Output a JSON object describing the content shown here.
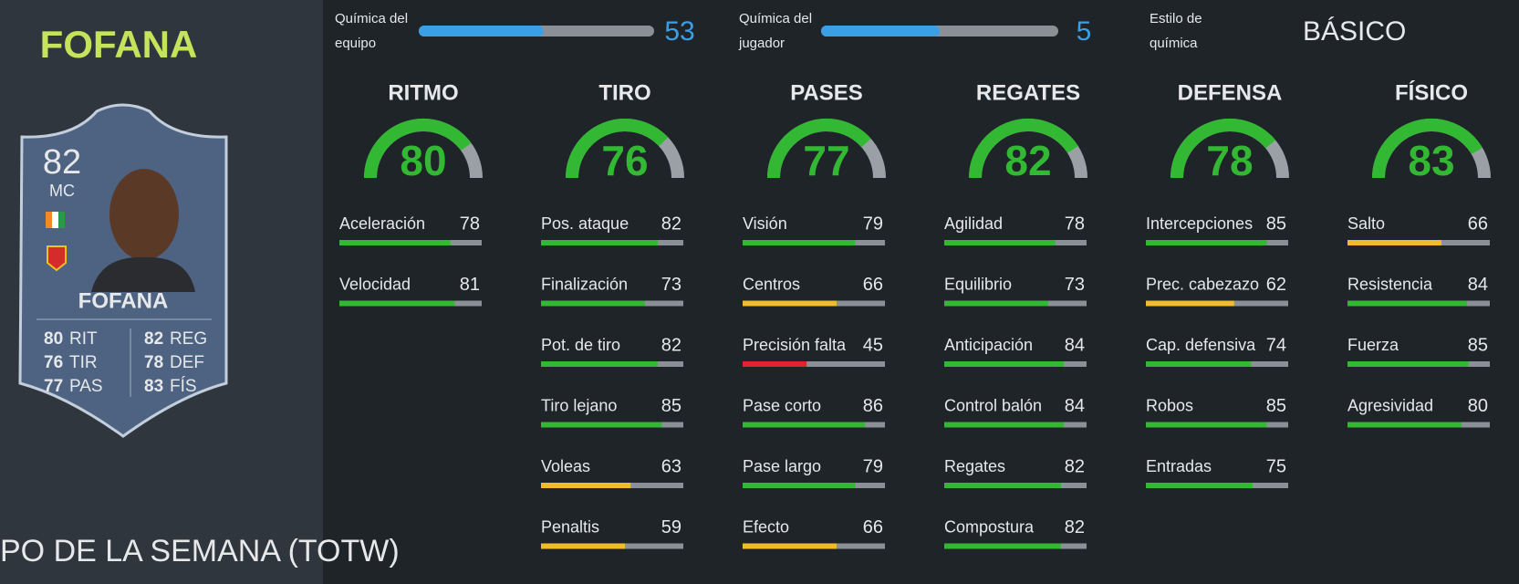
{
  "player": {
    "name": "FOFANA",
    "banner": "PO DE LA SEMANA (TOTW)"
  },
  "card": {
    "rating": 82,
    "position": "MC",
    "name": "FOFANA",
    "attribute_labels": [
      "RIT",
      "TIR",
      "PAS",
      "REG",
      "DEF",
      "FÍS"
    ]
  },
  "chemistry": {
    "team": {
      "label": [
        "Química del",
        "equipo"
      ],
      "value": 53,
      "range": [
        0,
        100
      ],
      "color": "#3b9fe6"
    },
    "player": {
      "label": [
        "Química del",
        "jugador"
      ],
      "value": 5,
      "range": [
        0,
        10
      ],
      "color": "#3b9fe6"
    },
    "style": {
      "label": [
        "Estilo de",
        "química"
      ],
      "value": "BÁSICO"
    }
  },
  "stats": {
    "range": [
      0,
      100
    ],
    "color_scale": [
      {
        "from": 0,
        "color": "#e0242e"
      },
      {
        "from": 50,
        "color": "#f0bb2c"
      },
      {
        "from": 70,
        "color": "#33b833"
      }
    ],
    "groups": [
      {
        "name": "RITMO",
        "value": 80,
        "attributes": [
          {
            "name": "Aceleración",
            "value": 78
          },
          {
            "name": "Velocidad",
            "value": 81
          }
        ]
      },
      {
        "name": "TIRO",
        "value": 76,
        "attributes": [
          {
            "name": "Pos. ataque",
            "value": 82
          },
          {
            "name": "Finalización",
            "value": 73
          },
          {
            "name": "Pot. de tiro",
            "value": 82
          },
          {
            "name": "Tiro lejano",
            "value": 85
          },
          {
            "name": "Voleas",
            "value": 63
          },
          {
            "name": "Penaltis",
            "value": 59
          }
        ]
      },
      {
        "name": "PASES",
        "value": 77,
        "attributes": [
          {
            "name": "Visión",
            "value": 79
          },
          {
            "name": "Centros",
            "value": 66
          },
          {
            "name": "Precisión falta",
            "value": 45
          },
          {
            "name": "Pase corto",
            "value": 86
          },
          {
            "name": "Pase largo",
            "value": 79
          },
          {
            "name": "Efecto",
            "value": 66
          }
        ]
      },
      {
        "name": "REGATES",
        "value": 82,
        "attributes": [
          {
            "name": "Agilidad",
            "value": 78
          },
          {
            "name": "Equilibrio",
            "value": 73
          },
          {
            "name": "Anticipación",
            "value": 84
          },
          {
            "name": "Control balón",
            "value": 84
          },
          {
            "name": "Regates",
            "value": 82
          },
          {
            "name": "Compostura",
            "value": 82
          }
        ]
      },
      {
        "name": "DEFENSA",
        "value": 78,
        "attributes": [
          {
            "name": "Intercepciones",
            "value": 85
          },
          {
            "name": "Prec. cabezazo",
            "value": 62
          },
          {
            "name": "Cap. defensiva",
            "value": 74
          },
          {
            "name": "Robos",
            "value": 85
          },
          {
            "name": "Entradas",
            "value": 75
          }
        ]
      },
      {
        "name": "FÍSICO",
        "value": 83,
        "attributes": [
          {
            "name": "Salto",
            "value": 66
          },
          {
            "name": "Resistencia",
            "value": 84
          },
          {
            "name": "Fuerza",
            "value": 85
          },
          {
            "name": "Agresividad",
            "value": 80
          }
        ]
      }
    ]
  }
}
